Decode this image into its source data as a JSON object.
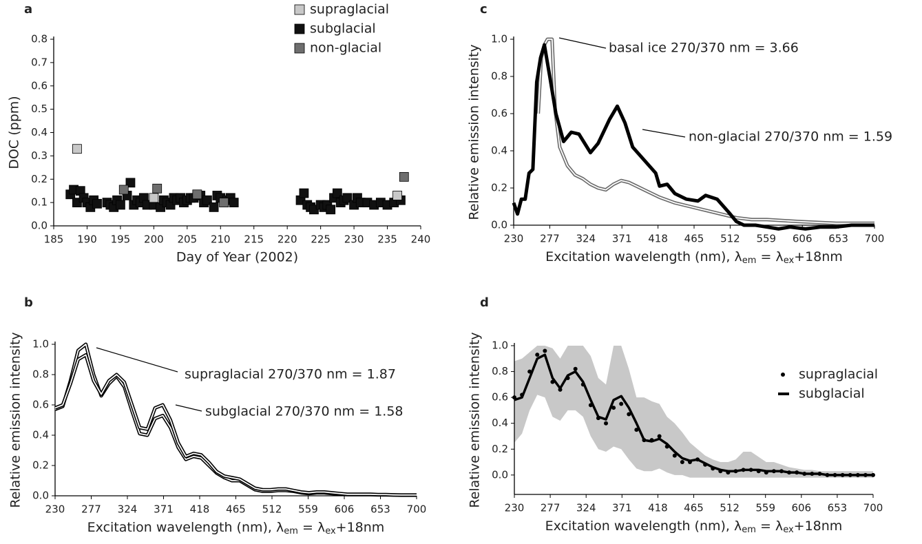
{
  "chart_data": [
    {
      "type": "scatter",
      "title": "a",
      "xlabel": "Day of Year (2002)",
      "ylabel": "DOC (ppm)",
      "xlim": [
        185,
        240
      ],
      "xticks": [
        185,
        190,
        195,
        200,
        205,
        210,
        215,
        220,
        225,
        230,
        235,
        240
      ],
      "ylim": [
        0,
        0.8
      ],
      "yticks": [
        {
          "value": 0,
          "label": "0.0"
        },
        0.1,
        0.2,
        0.3,
        0.4,
        0.5,
        0.6,
        0.7,
        0.8
      ],
      "grid": false,
      "legend": "upper right",
      "series": [
        {
          "name": "supraglacial",
          "color": "#c8c8c8",
          "x": [
            188.5,
            200,
            236.5
          ],
          "values": [
            0.33,
            0.12,
            0.13
          ]
        },
        {
          "name": "subglacial",
          "color": "#111111",
          "x": [
            187.5,
            188,
            188.5,
            189,
            189.5,
            190,
            190.5,
            191,
            191.5,
            193,
            193.5,
            194,
            194.5,
            195,
            196,
            196.5,
            197,
            197.5,
            198,
            198.5,
            199,
            200,
            201,
            201.5,
            202,
            202.5,
            203,
            203.5,
            204,
            204.5,
            205,
            205.5,
            206,
            207,
            207.5,
            208,
            209,
            209.5,
            210,
            211,
            211.5,
            212,
            222,
            222.5,
            223,
            223.5,
            224,
            225,
            225.5,
            226,
            226.5,
            227,
            227.5,
            228,
            228.5,
            229,
            230,
            230.5,
            231,
            232,
            233,
            234,
            235,
            236,
            237
          ],
          "values": [
            0.135,
            0.155,
            0.1,
            0.15,
            0.12,
            0.1,
            0.08,
            0.11,
            0.095,
            0.1,
            0.09,
            0.08,
            0.11,
            0.09,
            0.13,
            0.185,
            0.09,
            0.11,
            0.1,
            0.12,
            0.09,
            0.09,
            0.08,
            0.11,
            0.1,
            0.09,
            0.12,
            0.11,
            0.12,
            0.1,
            0.11,
            0.12,
            0.12,
            0.13,
            0.1,
            0.11,
            0.08,
            0.13,
            0.12,
            0.11,
            0.12,
            0.1,
            0.11,
            0.14,
            0.09,
            0.08,
            0.07,
            0.09,
            0.08,
            0.09,
            0.07,
            0.12,
            0.14,
            0.1,
            0.11,
            0.12,
            0.09,
            0.12,
            0.1,
            0.1,
            0.09,
            0.1,
            0.09,
            0.1,
            0.11
          ]
        },
        {
          "name": "non-glacial",
          "color": "#6e6e6e",
          "x": [
            195.5,
            200.5,
            206.5,
            210.5,
            237.5
          ],
          "values": [
            0.155,
            0.16,
            0.135,
            0.1,
            0.21
          ]
        }
      ]
    },
    {
      "type": "line",
      "title": "b",
      "xlabel": [
        "Excitation wavelength (nm), λ",
        "em",
        " = λ",
        "ex",
        "+18nm"
      ],
      "ylabel": "Relative emission intensity",
      "xlim": [
        230,
        700
      ],
      "xticks": [
        230,
        277,
        324,
        371,
        418,
        465,
        512,
        559,
        606,
        653,
        700
      ],
      "ylim": [
        0,
        1
      ],
      "yticks": [
        {
          "value": 0,
          "label": "0.0"
        },
        0.2,
        0.4,
        0.6,
        0.8,
        {
          "value": 1,
          "label": "1.0"
        }
      ],
      "grid": false,
      "series": [
        {
          "name": "supraglacial 270/370 nm = 1.87",
          "color": "#000000",
          "inner_color": "#ffffff",
          "x": [
            230,
            240,
            250,
            260,
            270,
            280,
            290,
            300,
            310,
            320,
            330,
            340,
            350,
            360,
            370,
            380,
            390,
            400,
            410,
            420,
            430,
            440,
            450,
            460,
            470,
            480,
            490,
            500,
            510,
            520,
            530,
            540,
            550,
            560,
            570,
            580,
            590,
            600,
            610,
            620,
            630,
            640,
            650,
            660,
            670,
            680,
            690,
            700
          ],
          "values": [
            0.57,
            0.59,
            0.76,
            0.96,
            1.0,
            0.8,
            0.66,
            0.74,
            0.79,
            0.72,
            0.56,
            0.41,
            0.4,
            0.51,
            0.53,
            0.45,
            0.32,
            0.24,
            0.26,
            0.25,
            0.2,
            0.15,
            0.12,
            0.1,
            0.1,
            0.07,
            0.04,
            0.03,
            0.03,
            0.035,
            0.035,
            0.03,
            0.02,
            0.015,
            0.02,
            0.02,
            0.015,
            0.01,
            0.008,
            0.008,
            0.008,
            0.008,
            0.006,
            0.006,
            0.005,
            0.004,
            0.004,
            0.004
          ]
        },
        {
          "name": "subglacial 270/370 nm = 1.58",
          "color": "#000000",
          "inner_color": "#ffffff",
          "x": [
            230,
            240,
            250,
            260,
            270,
            280,
            290,
            300,
            310,
            320,
            330,
            340,
            350,
            360,
            370,
            380,
            390,
            400,
            410,
            420,
            430,
            440,
            450,
            460,
            470,
            480,
            490,
            500,
            510,
            520,
            530,
            540,
            550,
            560,
            570,
            580,
            590,
            600,
            610,
            620,
            630,
            640,
            650,
            660,
            670,
            680,
            690,
            700
          ],
          "values": [
            0.58,
            0.6,
            0.74,
            0.9,
            0.93,
            0.76,
            0.67,
            0.76,
            0.8,
            0.75,
            0.6,
            0.45,
            0.44,
            0.58,
            0.6,
            0.5,
            0.35,
            0.26,
            0.28,
            0.27,
            0.22,
            0.16,
            0.13,
            0.12,
            0.11,
            0.08,
            0.05,
            0.04,
            0.04,
            0.045,
            0.045,
            0.035,
            0.025,
            0.02,
            0.025,
            0.025,
            0.02,
            0.015,
            0.01,
            0.01,
            0.01,
            0.01,
            0.008,
            0.008,
            0.006,
            0.005,
            0.005,
            0.005
          ]
        }
      ]
    },
    {
      "type": "line",
      "title": "c",
      "xlabel": [
        "Excitation wavelength (nm), λ",
        "em",
        " = λ",
        "ex",
        "+18nm"
      ],
      "ylabel": "Relative emission intensity",
      "xlim": [
        230,
        700
      ],
      "xticks": [
        230,
        277,
        324,
        371,
        418,
        465,
        512,
        559,
        606,
        653,
        700
      ],
      "ylim": [
        0,
        1
      ],
      "yticks": [
        {
          "value": 0,
          "label": "0.0"
        },
        0.2,
        0.4,
        0.6,
        0.8,
        {
          "value": 1,
          "label": "1.0"
        }
      ],
      "grid": false,
      "series": [
        {
          "name": "basal ice 270/370 nm = 3.66",
          "color": "#6a6a6a",
          "inner_color": "#ffffff",
          "x": [
            262,
            266,
            270,
            274,
            280,
            284,
            290,
            300,
            310,
            320,
            330,
            340,
            350,
            360,
            370,
            380,
            390,
            400,
            420,
            440,
            460,
            480,
            500,
            520,
            540,
            560,
            600,
            650,
            700
          ],
          "values": [
            0.6,
            0.9,
            0.97,
            1.0,
            1.0,
            0.62,
            0.42,
            0.32,
            0.27,
            0.25,
            0.22,
            0.2,
            0.19,
            0.22,
            0.24,
            0.23,
            0.21,
            0.19,
            0.15,
            0.12,
            0.1,
            0.08,
            0.06,
            0.04,
            0.03,
            0.03,
            0.02,
            0.01,
            0.01
          ]
        },
        {
          "name": "non-glacial 270/370 nm = 1.59",
          "color": "#000000",
          "x": [
            230,
            235,
            240,
            245,
            250,
            255,
            260,
            265,
            270,
            277,
            285,
            295,
            305,
            315,
            330,
            340,
            355,
            365,
            375,
            385,
            400,
            415,
            420,
            430,
            440,
            455,
            470,
            480,
            495,
            510,
            520,
            530,
            545,
            560,
            575,
            590,
            610,
            630,
            650,
            670,
            700
          ],
          "values": [
            0.12,
            0.06,
            0.14,
            0.14,
            0.28,
            0.3,
            0.77,
            0.9,
            0.97,
            0.8,
            0.6,
            0.45,
            0.5,
            0.49,
            0.39,
            0.44,
            0.57,
            0.64,
            0.55,
            0.42,
            0.35,
            0.28,
            0.21,
            0.22,
            0.17,
            0.14,
            0.13,
            0.16,
            0.14,
            0.07,
            0.02,
            0.0,
            0.0,
            -0.01,
            -0.02,
            -0.01,
            -0.02,
            -0.01,
            -0.01,
            0.0,
            0.0
          ]
        }
      ]
    },
    {
      "type": "line",
      "title": "d",
      "xlabel": [
        "Excitation wavelength (nm), λ",
        "em",
        " = λ",
        "ex",
        "+18nm"
      ],
      "ylabel": "Relative emission intensity",
      "xlim": [
        230,
        700
      ],
      "xticks": [
        230,
        277,
        324,
        371,
        418,
        465,
        512,
        559,
        606,
        653,
        700
      ],
      "ylim": [
        -0.15,
        1
      ],
      "yticks": [
        {
          "value": 0,
          "label": "0.0"
        },
        0.2,
        0.4,
        0.6,
        0.8,
        {
          "value": 1,
          "label": "1.0"
        }
      ],
      "grid": false,
      "legend": "upper right",
      "band": {
        "color": "#c8c8c8",
        "x": [
          230,
          240,
          250,
          260,
          270,
          280,
          290,
          300,
          310,
          320,
          330,
          340,
          350,
          360,
          370,
          380,
          390,
          400,
          410,
          420,
          430,
          440,
          450,
          460,
          470,
          480,
          490,
          500,
          510,
          520,
          530,
          540,
          550,
          560,
          570,
          580,
          590,
          600,
          610,
          620,
          630,
          640,
          650,
          660,
          670,
          680,
          690,
          700
        ],
        "upper": [
          0.88,
          0.9,
          0.95,
          1.0,
          1.0,
          0.98,
          0.9,
          1.0,
          1.0,
          1.0,
          0.92,
          0.75,
          0.7,
          1.0,
          1.0,
          0.82,
          0.6,
          0.6,
          0.57,
          0.55,
          0.45,
          0.4,
          0.33,
          0.25,
          0.2,
          0.15,
          0.12,
          0.1,
          0.1,
          0.12,
          0.18,
          0.18,
          0.14,
          0.1,
          0.1,
          0.08,
          0.06,
          0.05,
          0.04,
          0.04,
          0.03,
          0.03,
          0.03,
          0.03,
          0.03,
          0.03,
          0.03,
          0.03
        ],
        "lower": [
          0.25,
          0.32,
          0.5,
          0.62,
          0.6,
          0.45,
          0.42,
          0.5,
          0.5,
          0.45,
          0.3,
          0.2,
          0.18,
          0.22,
          0.2,
          0.12,
          0.05,
          0.03,
          0.03,
          0.05,
          0.02,
          0.0,
          0.0,
          -0.02,
          -0.02,
          -0.02,
          -0.02,
          -0.02,
          -0.02,
          -0.02,
          -0.02,
          -0.02,
          -0.02,
          -0.02,
          -0.02,
          -0.02,
          -0.02,
          -0.02,
          -0.02,
          -0.02,
          -0.02,
          -0.02,
          -0.02,
          -0.02,
          -0.02,
          -0.02,
          -0.02,
          -0.02
        ]
      },
      "series": [
        {
          "name": "supraglacial",
          "color": "#000000",
          "marker": "dot",
          "x": [
            230,
            240,
            250,
            260,
            270,
            280,
            290,
            300,
            310,
            320,
            330,
            340,
            350,
            360,
            370,
            380,
            390,
            400,
            410,
            420,
            430,
            440,
            450,
            460,
            470,
            480,
            490,
            500,
            510,
            520,
            530,
            540,
            550,
            560,
            570,
            580,
            590,
            600,
            610,
            620,
            630,
            640,
            650,
            660,
            670,
            680,
            690,
            700
          ],
          "values": [
            0.6,
            0.62,
            0.8,
            0.93,
            0.96,
            0.72,
            0.66,
            0.75,
            0.82,
            0.7,
            0.54,
            0.44,
            0.4,
            0.52,
            0.55,
            0.47,
            0.35,
            0.27,
            0.27,
            0.3,
            0.22,
            0.15,
            0.1,
            0.1,
            0.12,
            0.08,
            0.05,
            0.03,
            0.02,
            0.03,
            0.04,
            0.04,
            0.03,
            0.02,
            0.03,
            0.03,
            0.02,
            0.02,
            0.01,
            0.01,
            0.01,
            0.0,
            0.0,
            0.0,
            0.0,
            0.0,
            0.0,
            0.0
          ]
        },
        {
          "name": "subglacial",
          "color": "#000000",
          "x": [
            230,
            240,
            250,
            260,
            270,
            280,
            290,
            300,
            310,
            320,
            330,
            340,
            350,
            360,
            370,
            380,
            390,
            400,
            410,
            420,
            430,
            440,
            450,
            460,
            470,
            480,
            490,
            500,
            510,
            520,
            530,
            540,
            550,
            560,
            570,
            580,
            590,
            600,
            610,
            620,
            630,
            640,
            650,
            660,
            670,
            680,
            690,
            700
          ],
          "values": [
            0.58,
            0.6,
            0.75,
            0.9,
            0.93,
            0.75,
            0.67,
            0.77,
            0.8,
            0.72,
            0.58,
            0.45,
            0.43,
            0.58,
            0.61,
            0.52,
            0.4,
            0.27,
            0.26,
            0.28,
            0.24,
            0.18,
            0.13,
            0.11,
            0.12,
            0.09,
            0.06,
            0.04,
            0.03,
            0.03,
            0.04,
            0.04,
            0.04,
            0.03,
            0.03,
            0.03,
            0.02,
            0.02,
            0.01,
            0.01,
            0.01,
            0.0,
            0.0,
            0.0,
            0.0,
            0.0,
            0.0,
            0.0
          ]
        }
      ]
    }
  ]
}
